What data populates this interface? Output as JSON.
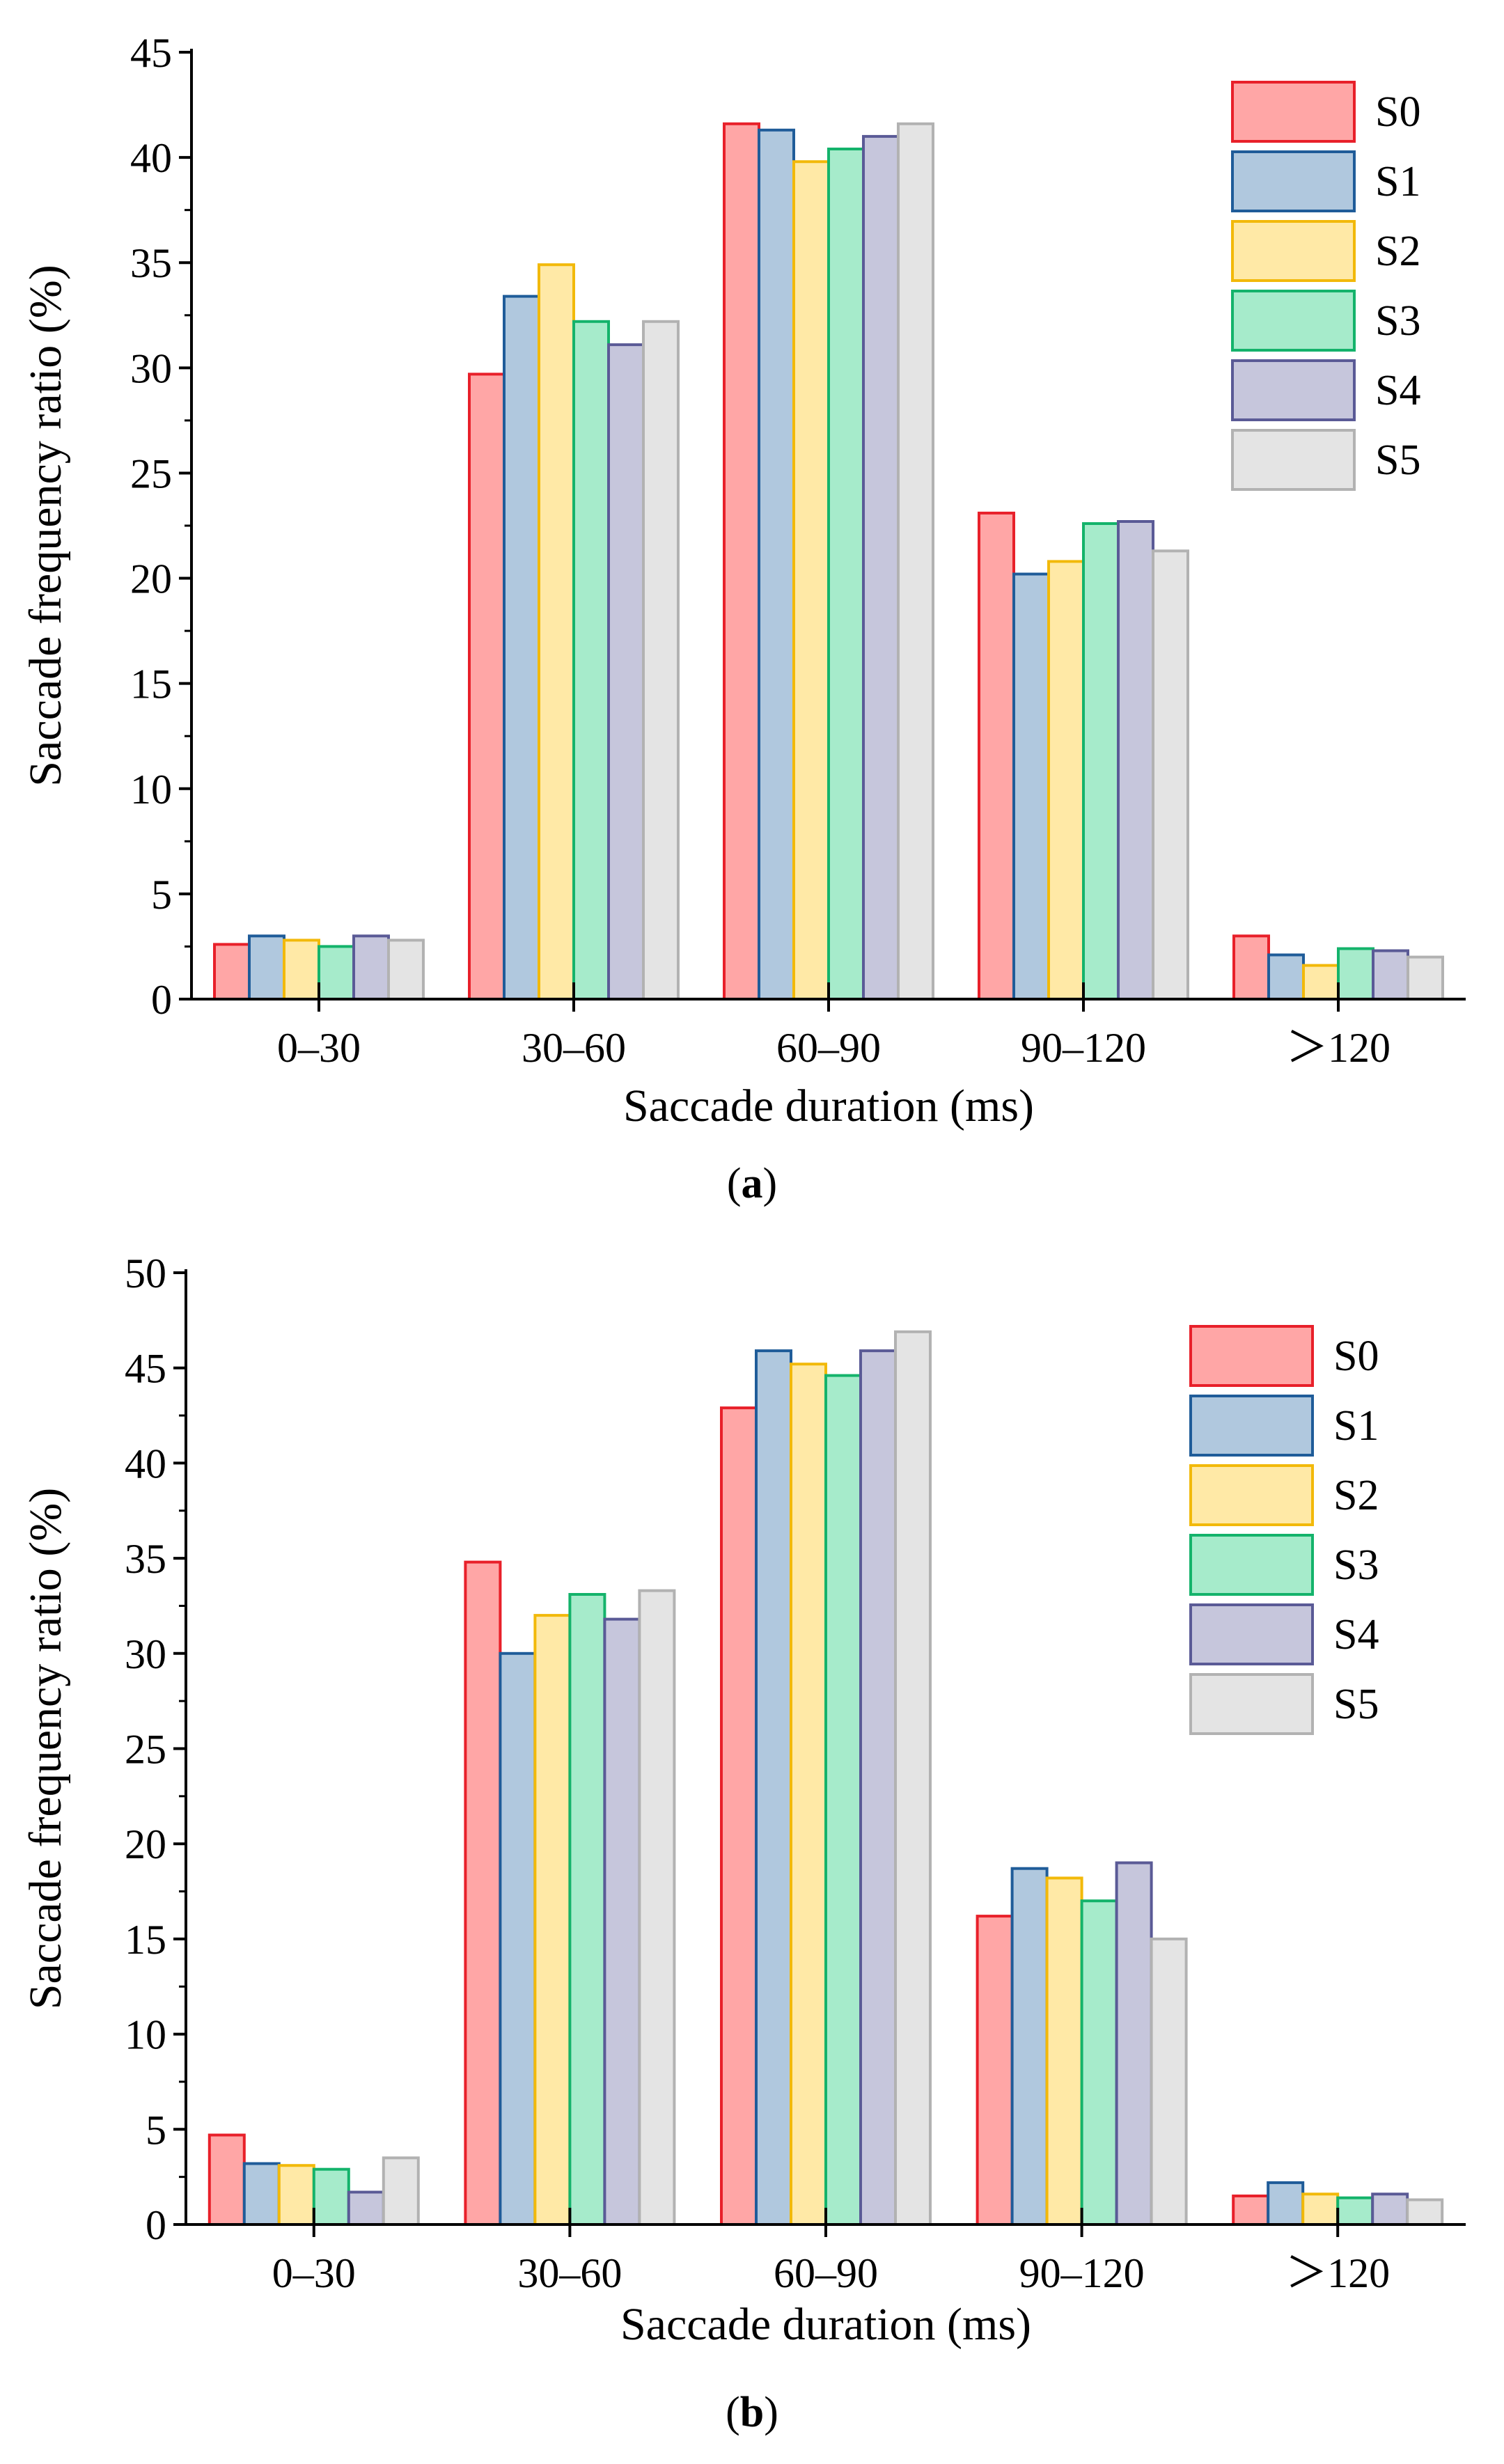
{
  "series_styles": [
    {
      "name": "S0",
      "fill": "#FFA6A6",
      "stroke": "#E8202A"
    },
    {
      "name": "S1",
      "fill": "#B0C8DE",
      "stroke": "#1F5C99"
    },
    {
      "name": "S2",
      "fill": "#FFE9A6",
      "stroke": "#F2B90A"
    },
    {
      "name": "S3",
      "fill": "#A6EBCB",
      "stroke": "#14B36B"
    },
    {
      "name": "S4",
      "fill": "#C6C6DC",
      "stroke": "#5A5A96"
    },
    {
      "name": "S5",
      "fill": "#E4E4E4",
      "stroke": "#B2B2B2"
    }
  ],
  "chart_data": [
    {
      "type": "bar",
      "caption_letter": "a",
      "caption_open": "(",
      "caption_close": ")",
      "categories": [
        "0–30",
        "30–60",
        "60–90",
        "90–120",
        "＞120"
      ],
      "xlabel": "Saccade duration (ms)",
      "ylabel": "Saccade frequency ratio (%)",
      "ylim": [
        0,
        45
      ],
      "yticks": [
        "0",
        "5",
        "10",
        "15",
        "20",
        "25",
        "30",
        "35",
        "40",
        "45"
      ],
      "legend_position": "top-right",
      "series": [
        {
          "name": "S0",
          "values": [
            2.6,
            29.7,
            41.6,
            23.1,
            3.0
          ]
        },
        {
          "name": "S1",
          "values": [
            3.0,
            33.4,
            41.3,
            20.2,
            2.1
          ]
        },
        {
          "name": "S2",
          "values": [
            2.8,
            34.9,
            39.8,
            20.8,
            1.6
          ]
        },
        {
          "name": "S3",
          "values": [
            2.5,
            32.2,
            40.4,
            22.6,
            2.4
          ]
        },
        {
          "name": "S4",
          "values": [
            3.0,
            31.1,
            41.0,
            22.7,
            2.3
          ]
        },
        {
          "name": "S5",
          "values": [
            2.8,
            32.2,
            41.6,
            21.3,
            2.0
          ]
        }
      ]
    },
    {
      "type": "bar",
      "caption_letter": "b",
      "caption_open": "(",
      "caption_close": ")",
      "categories": [
        "0–30",
        "30–60",
        "60–90",
        "90–120",
        "＞120"
      ],
      "xlabel": "Saccade duration (ms)",
      "ylabel": "Saccade frequency ratio (%)",
      "ylim": [
        0,
        50
      ],
      "yticks": [
        "0",
        "5",
        "10",
        "15",
        "20",
        "25",
        "30",
        "35",
        "40",
        "45",
        "50"
      ],
      "legend_position": "top-right",
      "series": [
        {
          "name": "S0",
          "values": [
            4.7,
            34.8,
            42.9,
            16.2,
            1.5
          ]
        },
        {
          "name": "S1",
          "values": [
            3.2,
            30.0,
            45.9,
            18.7,
            2.2
          ]
        },
        {
          "name": "S2",
          "values": [
            3.1,
            32.0,
            45.2,
            18.2,
            1.6
          ]
        },
        {
          "name": "S3",
          "values": [
            2.9,
            33.1,
            44.6,
            17.0,
            1.4
          ]
        },
        {
          "name": "S4",
          "values": [
            1.7,
            31.8,
            45.9,
            19.0,
            1.6
          ]
        },
        {
          "name": "S5",
          "values": [
            3.5,
            33.3,
            46.9,
            15.0,
            1.3
          ]
        }
      ]
    }
  ]
}
